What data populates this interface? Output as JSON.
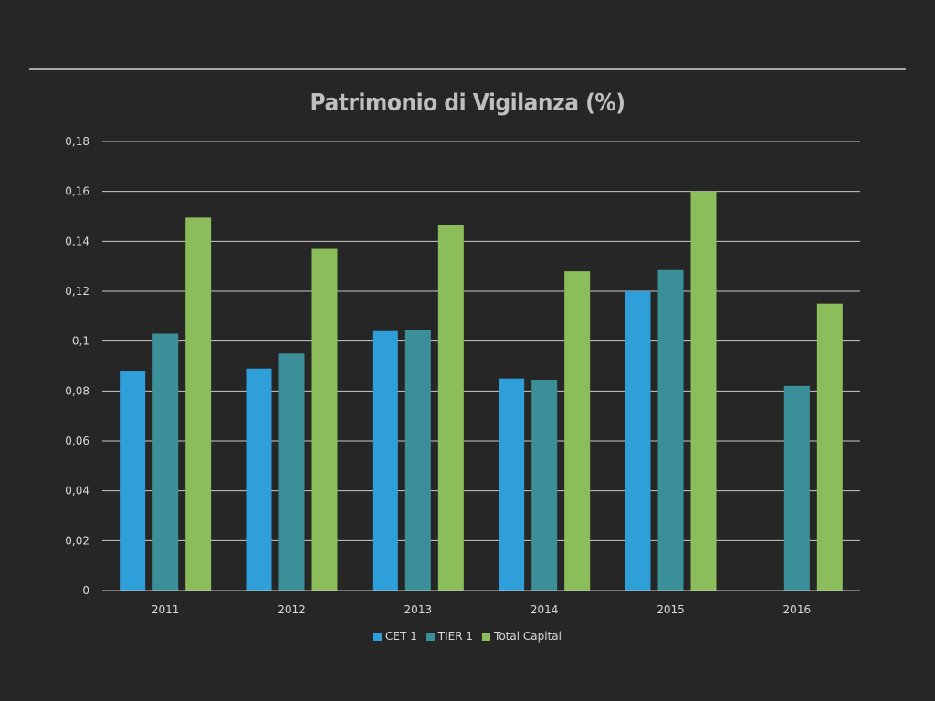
{
  "chart_data": {
    "type": "bar",
    "title": "Patrimonio di Vigilanza (%)",
    "categories": [
      "2011",
      "2012",
      "2013",
      "2014",
      "2015",
      "2016"
    ],
    "series": [
      {
        "name": "CET 1",
        "color": "#2e9fd9",
        "values": [
          0.088,
          0.089,
          0.104,
          0.085,
          0.12,
          null
        ]
      },
      {
        "name": "TIER 1",
        "color": "#3a8f99",
        "values": [
          0.103,
          0.095,
          0.1045,
          0.0845,
          0.1285,
          0.082
        ]
      },
      {
        "name": "Total Capital",
        "color": "#8bbd5a",
        "values": [
          0.1495,
          0.137,
          0.1465,
          0.128,
          0.16,
          0.115
        ]
      }
    ],
    "ylim": [
      0,
      0.18
    ],
    "yticks": [
      "0",
      "0,02",
      "0,04",
      "0,06",
      "0,08",
      "0,1",
      "0,12",
      "0,14",
      "0,16",
      "0,18"
    ],
    "grid": true,
    "legend_position": "bottom"
  }
}
